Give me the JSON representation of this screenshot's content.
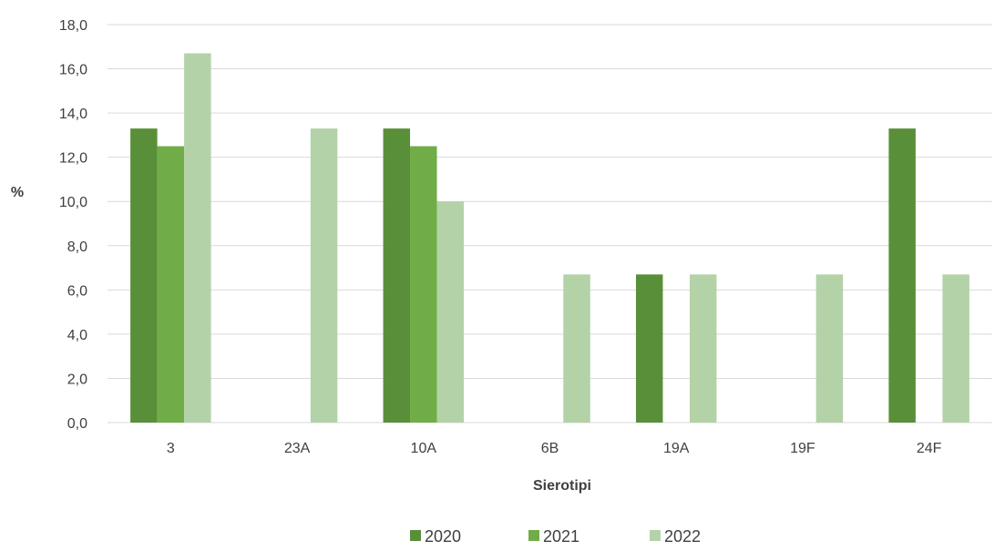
{
  "chart_data": {
    "type": "bar",
    "title": "",
    "xlabel": "Sierotipi",
    "ylabel": "%",
    "categories": [
      "3",
      "23A",
      "10A",
      "6B",
      "19A",
      "19F",
      "24F"
    ],
    "series": [
      {
        "name": "2020",
        "color": "#5a8f3a",
        "values": [
          13.3,
          0,
          13.3,
          0,
          6.7,
          0,
          13.3
        ]
      },
      {
        "name": "2021",
        "color": "#70ad47",
        "values": [
          12.5,
          0,
          12.5,
          0,
          0,
          0,
          0
        ]
      },
      {
        "name": "2022",
        "color": "#b4d2a8",
        "values": [
          16.7,
          13.3,
          10.0,
          6.7,
          6.7,
          6.7,
          6.7
        ]
      }
    ],
    "ylim": [
      0,
      18
    ],
    "yticks": [
      "0,0",
      "2,0",
      "4,0",
      "6,0",
      "8,0",
      "10,0",
      "12,0",
      "14,0",
      "16,0",
      "18,0"
    ],
    "grid": true,
    "legend_position": "bottom"
  }
}
